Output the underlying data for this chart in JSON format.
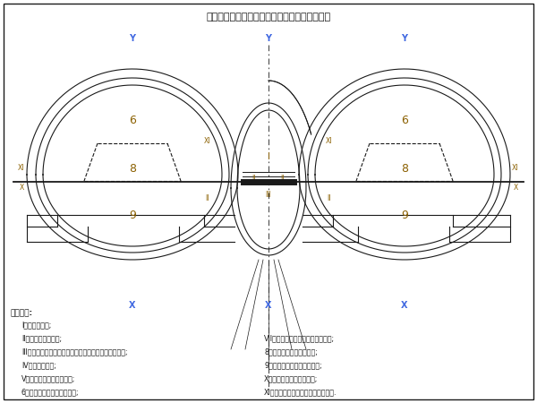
{
  "title": "连拱隧道中导洞法合阶分步开挖施工作业程序图",
  "legend_title": "图中符号:",
  "legend_left": [
    "I、中导洞开挖;",
    "II、中导洞初期支护;",
    "III、基底注浆锚杆施作，危洞中墙及中墙底部回填处理;",
    "IV、中墙侧支柱;",
    "V、左（右）主洞超前支护;",
    "6、左（右）主洞上合阶开挖;"
  ],
  "legend_right": [
    "VII、左（右）主洞上合阶初期支护;",
    "8、主洞上合阶核心土开挖;",
    "9、左（右）主洞下合阶开挖;",
    "X、左（右）主洞仰拱初砌;",
    "XI、全断面喷注左（右）洞二次衬砌."
  ],
  "bg": "#ffffff",
  "lc": "#1a1a1a",
  "lbl": "#8B6000",
  "axis_c": "#4169E1"
}
